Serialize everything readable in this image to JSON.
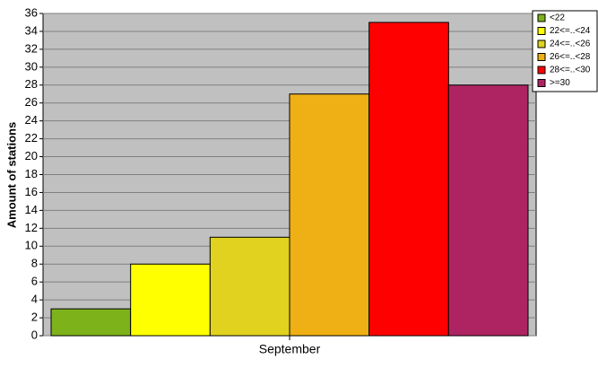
{
  "chart_data": {
    "type": "bar",
    "y_label": "Amount of stations",
    "categories": [
      "September"
    ],
    "series": [
      {
        "name": "<22",
        "color": "#7db21a",
        "values": [
          3
        ]
      },
      {
        "name": "22<=..<24",
        "color": "#ffff00",
        "values": [
          8
        ]
      },
      {
        "name": "24<=..<26",
        "color": "#e0d21e",
        "values": [
          11
        ]
      },
      {
        "name": "26<=..<28",
        "color": "#eeb015",
        "values": [
          27
        ]
      },
      {
        "name": "28<=..<30",
        "color": "#ff0000",
        "values": [
          35
        ]
      },
      {
        "name": ">=30",
        "color": "#ae2462",
        "values": [
          28
        ]
      }
    ],
    "ylim": [
      0,
      36
    ],
    "yticks": [
      0,
      2,
      4,
      6,
      8,
      10,
      12,
      14,
      16,
      18,
      20,
      22,
      24,
      26,
      28,
      30,
      32,
      34,
      36
    ],
    "grid": true,
    "legend": "top-right"
  }
}
